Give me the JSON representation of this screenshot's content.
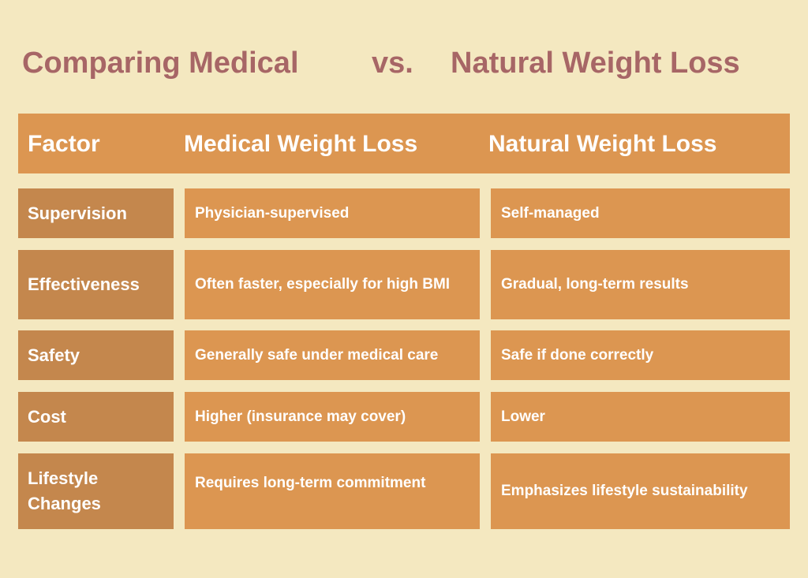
{
  "title": {
    "left": "Comparing Medical",
    "mid": "vs.",
    "right": "Natural Weight Loss"
  },
  "table": {
    "headers": [
      "Factor",
      "Medical Weight Loss",
      "Natural Weight Loss"
    ],
    "rows": [
      {
        "factor": "Supervision",
        "medical": "Physician-supervised",
        "natural": "Self-managed"
      },
      {
        "factor": "Effectiveness",
        "medical": "Often faster, especially for high BMI",
        "natural": "Gradual, long-term results"
      },
      {
        "factor": "Safety",
        "medical": "Generally safe under medical care",
        "natural": "Safe if done correctly"
      },
      {
        "factor": "Cost",
        "medical": "Higher (insurance may cover)",
        "natural": "Lower"
      },
      {
        "factor": "Lifestyle Changes",
        "medical": "Requires long-term commitment",
        "natural": "Emphasizes lifestyle sustainability"
      }
    ]
  },
  "colors": {
    "background": "#f4e8c0",
    "title": "#a76666",
    "header": "#dc9651",
    "factor_cell": "#c4874d",
    "value_cell": "#dc9651",
    "text": "#ffffff"
  }
}
